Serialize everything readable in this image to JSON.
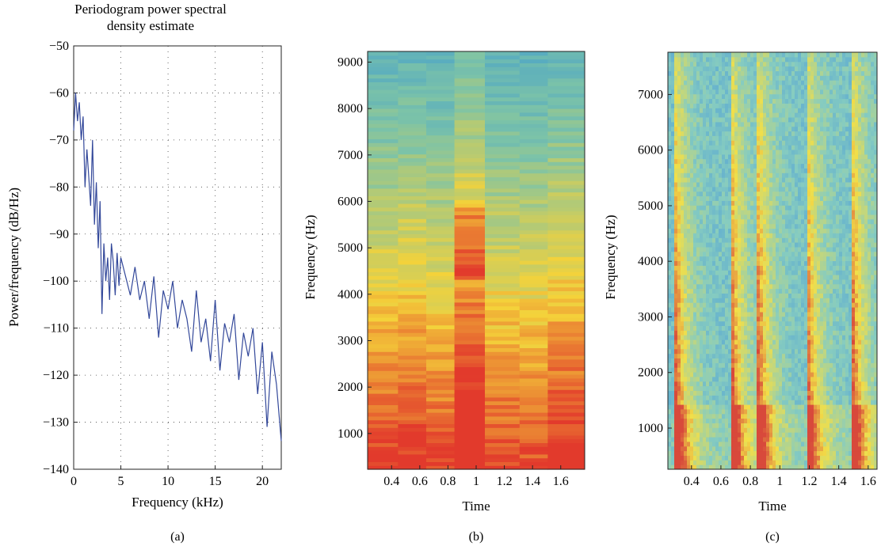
{
  "chart_data": [
    {
      "panel": "a",
      "caption": "(a)",
      "type": "line",
      "title_lines": [
        "Periodogram power spectral",
        "density estimate"
      ],
      "xlabel": "Frequency (kHz)",
      "ylabel": "Power/frequency (dB/Hz)",
      "xlim": [
        0,
        22
      ],
      "ylim": [
        -140,
        -50
      ],
      "xticks": [
        "0",
        "5",
        "10",
        "15",
        "20"
      ],
      "yticks": [
        "-50",
        "-60",
        "-70",
        "-80",
        "-90",
        "-100",
        "-110",
        "-120",
        "-130",
        "-140"
      ],
      "grid": true,
      "line_color": "#33489a",
      "series": [
        {
          "x": [
            0,
            0.2,
            0.4,
            0.6,
            0.8,
            1.0,
            1.2,
            1.4,
            1.6,
            1.8,
            2.0,
            2.2,
            2.4,
            2.6,
            2.8,
            3.0,
            3.2,
            3.4,
            3.6,
            3.8,
            4.0,
            4.2,
            4.4,
            4.6,
            4.8,
            5.0,
            5.5,
            6.0,
            6.5,
            7.0,
            7.5,
            8.0,
            8.5,
            9.0,
            9.5,
            10.0,
            10.5,
            11.0,
            11.5,
            12.0,
            12.5,
            13.0,
            13.5,
            14.0,
            14.5,
            15.0,
            15.5,
            16.0,
            16.5,
            17.0,
            17.5,
            18.0,
            18.5,
            19.0,
            19.5,
            20.0,
            20.5,
            21.0,
            21.5,
            22.0
          ],
          "y": [
            -68,
            -60,
            -66,
            -62,
            -70,
            -65,
            -80,
            -72,
            -78,
            -84,
            -70,
            -88,
            -79,
            -93,
            -83,
            -107,
            -92,
            -100,
            -95,
            -104,
            -92,
            -96,
            -103,
            -94,
            -101,
            -95,
            -99,
            -103,
            -97,
            -104,
            -100,
            -108,
            -99,
            -112,
            -102,
            -106,
            -100,
            -110,
            -104,
            -108,
            -115,
            -102,
            -113,
            -108,
            -117,
            -104,
            -119,
            -109,
            -113,
            -107,
            -121,
            -111,
            -116,
            -110,
            -124,
            -113,
            -131,
            -115,
            -122,
            -134
          ]
        }
      ]
    },
    {
      "panel": "b",
      "caption": "(b)",
      "type": "heatmap",
      "xlabel": "Time",
      "ylabel": "Frequency (Hz)",
      "xticks": [
        "0.4",
        "0.6",
        "0.8",
        "1",
        "1.2",
        "1.4",
        "1.6"
      ],
      "yticks": [
        "1000",
        "2000",
        "3000",
        "4000",
        "5000",
        "6000",
        "7000",
        "8000",
        "9000"
      ],
      "xlim": [
        0.23,
        1.77
      ],
      "ylim": [
        230,
        9230
      ],
      "colors": {
        "high": "#e23a2c",
        "mid": "#f4d23a",
        "low": "#7cc3a8",
        "lowest": "#4aa3c9"
      }
    },
    {
      "panel": "c",
      "caption": "(c)",
      "type": "heatmap",
      "xlabel": "Time",
      "ylabel": "Frequency (Hz)",
      "xticks": [
        "0.4",
        "0.6",
        "0.8",
        "1",
        "1.2",
        "1.4",
        "1.6"
      ],
      "yticks": [
        "1000",
        "2000",
        "3000",
        "4000",
        "5000",
        "6000",
        "7000"
      ],
      "xlim": [
        0.24,
        1.66
      ],
      "ylim": [
        260,
        7760
      ],
      "colors": {
        "high": "#d8493b",
        "mid": "#f2df48",
        "low": "#86ccc0",
        "lowest": "#4f9fd8"
      }
    }
  ]
}
